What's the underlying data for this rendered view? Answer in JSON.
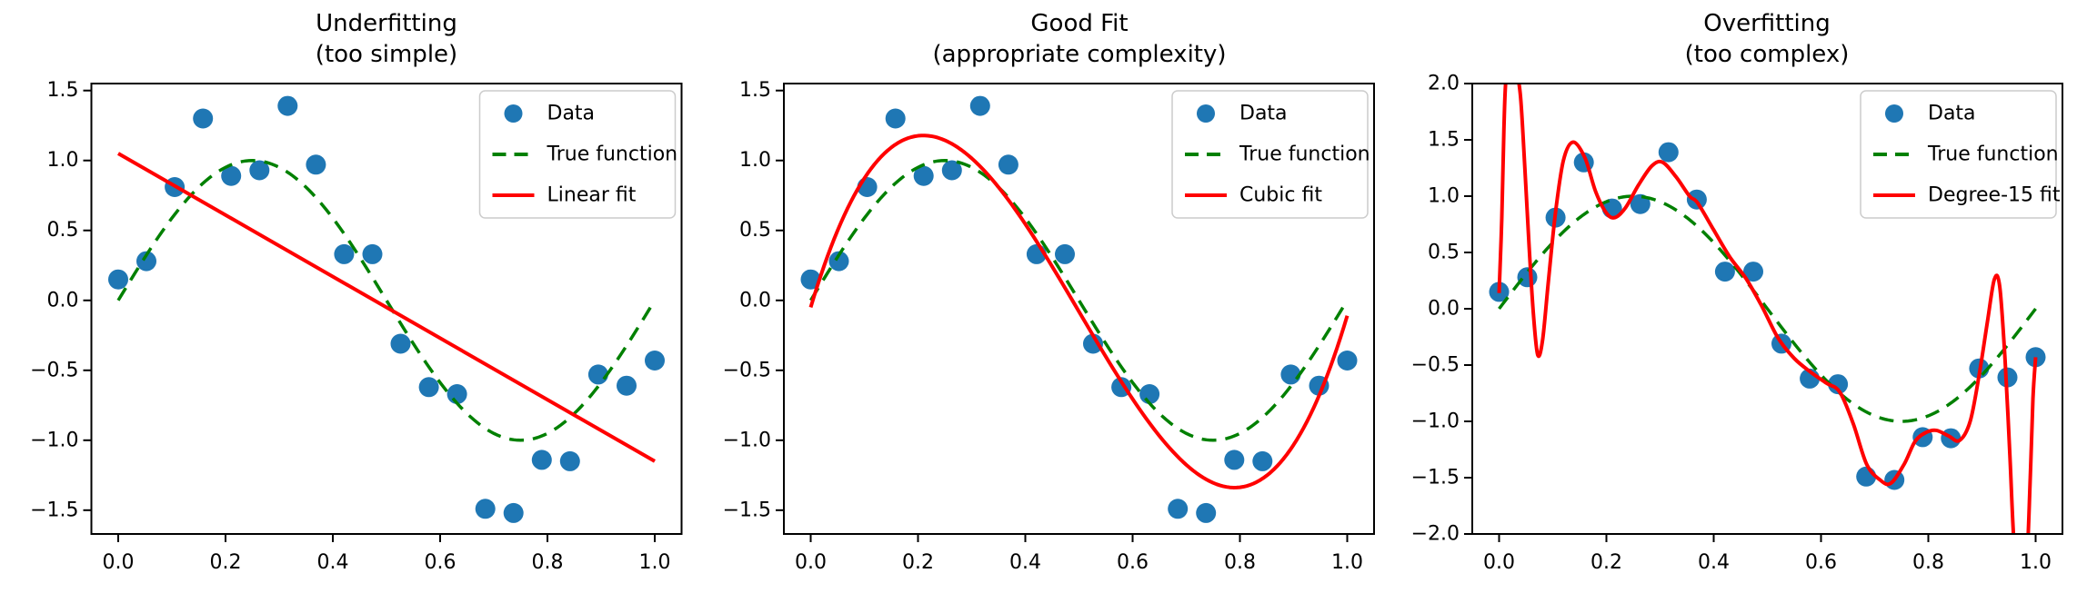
{
  "figure": {
    "background": "#ffffff",
    "kind": "matplotlib-style static chart, three subplots, no interactive controls"
  },
  "colors": {
    "data_points": "#1f77b4",
    "true_function": "#008000",
    "fit_line": "#ff0000",
    "axes": "#000000",
    "legend_border": "#cccccc",
    "legend_background": "#ffffff"
  },
  "chart_data": [
    {
      "type": "scatter",
      "title": "Underfitting",
      "subtitle": "(too simple)",
      "xlim": [
        -0.05,
        1.05
      ],
      "ylim": [
        -1.67,
        1.55
      ],
      "grid": false,
      "legend_position": "upper right",
      "xticks": {
        "values": [
          0.0,
          0.2,
          0.4,
          0.6,
          0.8,
          1.0
        ],
        "labels": [
          "0.0",
          "0.2",
          "0.4",
          "0.6",
          "0.8",
          "1.0"
        ]
      },
      "yticks": {
        "values": [
          1.5,
          1.0,
          0.5,
          0.0,
          -0.5,
          -1.0,
          -1.5
        ],
        "labels": [
          "1.5",
          "1.0",
          "0.5",
          "0.0",
          "−0.5",
          "−1.0",
          "−1.5"
        ]
      },
      "legend": [
        {
          "label": "Data",
          "marker": "dot",
          "color": "#1f77b4"
        },
        {
          "label": "True function",
          "style": "dashed",
          "color": "#008000"
        },
        {
          "label": "Linear fit",
          "style": "solid",
          "color": "#ff0000"
        }
      ],
      "series": {
        "data_points": {
          "name": "Data",
          "x": [
            0.0,
            0.0526,
            0.1053,
            0.1579,
            0.2105,
            0.2632,
            0.3158,
            0.3684,
            0.4211,
            0.4737,
            0.5263,
            0.5789,
            0.6316,
            0.6842,
            0.7368,
            0.7895,
            0.8421,
            0.8947,
            0.9474,
            1.0
          ],
          "y": [
            0.15,
            0.28,
            0.81,
            1.3,
            0.89,
            0.93,
            1.39,
            0.97,
            0.33,
            0.33,
            -0.31,
            -0.62,
            -0.67,
            -1.49,
            -1.52,
            -1.14,
            -1.15,
            -0.53,
            -0.61,
            -0.43
          ]
        },
        "true_function": {
          "name": "True function",
          "kind": "sine",
          "formula": "sin(2*pi*x)",
          "x_range": [
            0,
            1
          ]
        },
        "fit": {
          "name": "Linear fit",
          "kind": "linear",
          "points": [
            [
              0.0,
              1.05
            ],
            [
              1.0,
              -1.15
            ]
          ]
        }
      }
    },
    {
      "type": "scatter",
      "title": "Good Fit",
      "subtitle": "(appropriate complexity)",
      "xlim": [
        -0.05,
        1.05
      ],
      "ylim": [
        -1.67,
        1.55
      ],
      "grid": false,
      "legend_position": "upper right",
      "xticks": {
        "values": [
          0.0,
          0.2,
          0.4,
          0.6,
          0.8,
          1.0
        ],
        "labels": [
          "0.0",
          "0.2",
          "0.4",
          "0.6",
          "0.8",
          "1.0"
        ]
      },
      "yticks": {
        "values": [
          1.5,
          1.0,
          0.5,
          0.0,
          -0.5,
          -1.0,
          -1.5
        ],
        "labels": [
          "1.5",
          "1.0",
          "0.5",
          "0.0",
          "−0.5",
          "−1.0",
          "−1.5"
        ]
      },
      "legend": [
        {
          "label": "Data",
          "marker": "dot",
          "color": "#1f77b4"
        },
        {
          "label": "True function",
          "style": "dashed",
          "color": "#008000"
        },
        {
          "label": "Cubic fit",
          "style": "solid",
          "color": "#ff0000"
        }
      ],
      "series": {
        "data_points": {
          "name": "Data",
          "x": [
            0.0,
            0.0526,
            0.1053,
            0.1579,
            0.2105,
            0.2632,
            0.3158,
            0.3684,
            0.4211,
            0.4737,
            0.5263,
            0.5789,
            0.6316,
            0.6842,
            0.7368,
            0.7895,
            0.8421,
            0.8947,
            0.9474,
            1.0
          ],
          "y": [
            0.15,
            0.28,
            0.81,
            1.3,
            0.89,
            0.93,
            1.39,
            0.97,
            0.33,
            0.33,
            -0.31,
            -0.62,
            -0.67,
            -1.49,
            -1.52,
            -1.14,
            -1.15,
            -0.53,
            -0.61,
            -0.43
          ]
        },
        "true_function": {
          "name": "True function",
          "kind": "sine",
          "formula": "sin(2*pi*x)",
          "x_range": [
            0,
            1
          ]
        },
        "fit": {
          "name": "Cubic fit",
          "kind": "poly",
          "coefficients": [
            -0.05,
            12.84,
            -38.7,
            25.8
          ],
          "x_range": [
            0,
            1
          ]
        }
      }
    },
    {
      "type": "scatter",
      "title": "Overfitting",
      "subtitle": "(too complex)",
      "xlim": [
        -0.05,
        1.05
      ],
      "ylim": [
        -2.0,
        2.0
      ],
      "grid": false,
      "legend_position": "upper right",
      "xticks": {
        "values": [
          0.0,
          0.2,
          0.4,
          0.6,
          0.8,
          1.0
        ],
        "labels": [
          "0.0",
          "0.2",
          "0.4",
          "0.6",
          "0.8",
          "1.0"
        ]
      },
      "yticks": {
        "values": [
          2.0,
          1.5,
          1.0,
          0.5,
          0.0,
          -0.5,
          -1.0,
          -1.5,
          -2.0
        ],
        "labels": [
          "2.0",
          "1.5",
          "1.0",
          "0.5",
          "0.0",
          "−0.5",
          "−1.0",
          "−1.5",
          "−2.0"
        ]
      },
      "legend": [
        {
          "label": "Data",
          "marker": "dot",
          "color": "#1f77b4"
        },
        {
          "label": "True function",
          "style": "dashed",
          "color": "#008000"
        },
        {
          "label": "Degree-15 fit",
          "style": "solid",
          "color": "#ff0000"
        }
      ],
      "series": {
        "data_points": {
          "name": "Data",
          "x": [
            0.0,
            0.0526,
            0.1053,
            0.1579,
            0.2105,
            0.2632,
            0.3158,
            0.3684,
            0.4211,
            0.4737,
            0.5263,
            0.5789,
            0.6316,
            0.6842,
            0.7368,
            0.7895,
            0.8421,
            0.8947,
            0.9474,
            1.0
          ],
          "y": [
            0.15,
            0.28,
            0.81,
            1.3,
            0.89,
            0.93,
            1.39,
            0.97,
            0.33,
            0.33,
            -0.31,
            -0.62,
            -0.67,
            -1.49,
            -1.52,
            -1.14,
            -1.15,
            -0.53,
            -0.61,
            -0.43
          ]
        },
        "true_function": {
          "name": "True function",
          "kind": "sine",
          "formula": "sin(2*pi*x)",
          "x_range": [
            0,
            1
          ]
        },
        "fit": {
          "name": "Degree-15 fit",
          "kind": "sampled",
          "points": [
            [
              0.0,
              0.14
            ],
            [
              0.005,
              0.8
            ],
            [
              0.009,
              1.6
            ],
            [
              0.013,
              2.05
            ],
            [
              0.022,
              2.18
            ],
            [
              0.032,
              2.1
            ],
            [
              0.04,
              1.88
            ],
            [
              0.048,
              1.25
            ],
            [
              0.056,
              0.55
            ],
            [
              0.064,
              -0.05
            ],
            [
              0.072,
              -0.41
            ],
            [
              0.081,
              -0.28
            ],
            [
              0.092,
              0.25
            ],
            [
              0.105,
              0.85
            ],
            [
              0.12,
              1.32
            ],
            [
              0.138,
              1.48
            ],
            [
              0.16,
              1.34
            ],
            [
              0.18,
              1.04
            ],
            [
              0.2,
              0.85
            ],
            [
              0.216,
              0.81
            ],
            [
              0.236,
              0.9
            ],
            [
              0.26,
              1.1
            ],
            [
              0.285,
              1.27
            ],
            [
              0.305,
              1.3
            ],
            [
              0.33,
              1.17
            ],
            [
              0.355,
              1.0
            ],
            [
              0.37,
              0.94
            ],
            [
              0.4,
              0.7
            ],
            [
              0.43,
              0.46
            ],
            [
              0.46,
              0.27
            ],
            [
              0.49,
              0.02
            ],
            [
              0.52,
              -0.26
            ],
            [
              0.55,
              -0.44
            ],
            [
              0.58,
              -0.56
            ],
            [
              0.61,
              -0.66
            ],
            [
              0.635,
              -0.74
            ],
            [
              0.66,
              -1.02
            ],
            [
              0.685,
              -1.38
            ],
            [
              0.71,
              -1.52
            ],
            [
              0.73,
              -1.55
            ],
            [
              0.755,
              -1.38
            ],
            [
              0.775,
              -1.18
            ],
            [
              0.795,
              -1.1
            ],
            [
              0.815,
              -1.08
            ],
            [
              0.838,
              -1.13
            ],
            [
              0.858,
              -1.17
            ],
            [
              0.878,
              -1.0
            ],
            [
              0.895,
              -0.58
            ],
            [
              0.91,
              -0.12
            ],
            [
              0.923,
              0.26
            ],
            [
              0.933,
              0.2
            ],
            [
              0.943,
              -0.45
            ],
            [
              0.952,
              -1.3
            ],
            [
              0.96,
              -2.1
            ],
            [
              0.972,
              -2.6
            ],
            [
              0.983,
              -2.3
            ],
            [
              0.99,
              -1.5
            ],
            [
              0.995,
              -0.8
            ],
            [
              1.0,
              -0.43
            ]
          ]
        }
      }
    }
  ]
}
